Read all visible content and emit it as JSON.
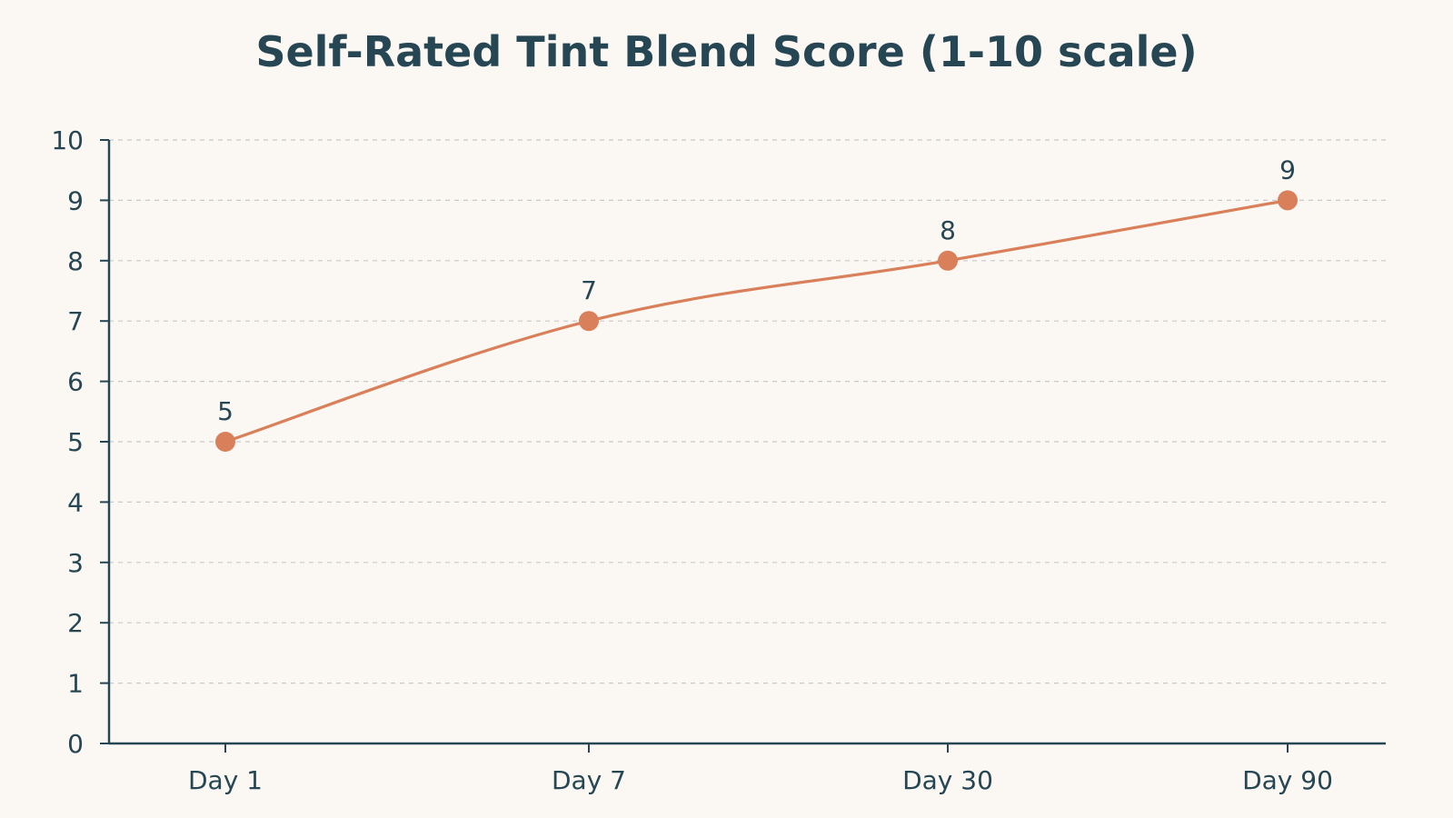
{
  "colors": {
    "background": "#fbf8f4",
    "axis": "#264653",
    "grid": "#c9c9c9",
    "series": "#d9805a",
    "text": "#264653"
  },
  "chart_data": {
    "type": "line",
    "title": "Self-Rated Tint Blend Score (1-10 scale)",
    "xlabel": "",
    "ylabel": "",
    "categories": [
      "Day 1",
      "Day 7",
      "Day 30",
      "Day 90"
    ],
    "series": [
      {
        "values": [
          5,
          7,
          8,
          9
        ]
      }
    ],
    "data_labels": [
      "5",
      "7",
      "8",
      "9"
    ],
    "ylim": [
      0,
      10
    ],
    "yticks": [
      0,
      1,
      2,
      3,
      4,
      5,
      6,
      7,
      8,
      9,
      10
    ],
    "ytick_labels": [
      "0",
      "1",
      "2",
      "3",
      "4",
      "5",
      "6",
      "7",
      "8",
      "9",
      "10"
    ],
    "grid": "horizontal-dashed",
    "legend": "none",
    "smooth": true
  }
}
